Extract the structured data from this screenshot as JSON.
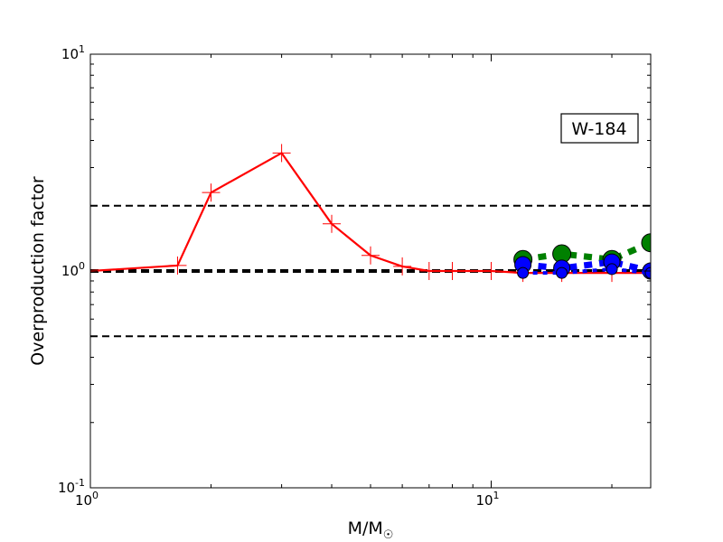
{
  "chart_data": {
    "type": "line",
    "xscale": "log",
    "yscale": "log",
    "xlim": [
      1,
      25
    ],
    "ylim": [
      0.1,
      10
    ],
    "xlabel_base": "M/M",
    "xlabel_sub": "☉",
    "ylabel": "Overproduction factor",
    "annotation": "W-184",
    "x_ticks": [
      {
        "value": 1,
        "base": "10",
        "exp": "0"
      },
      {
        "value": 10,
        "base": "10",
        "exp": "1"
      }
    ],
    "y_ticks": [
      {
        "value": 0.1,
        "base": "10",
        "exp": "-1"
      },
      {
        "value": 1,
        "base": "10",
        "exp": "0"
      },
      {
        "value": 10,
        "base": "10",
        "exp": "1"
      }
    ],
    "reference_lines": [
      {
        "y": 2,
        "color": "#000000",
        "style": "dashed"
      },
      {
        "y": 1,
        "color": "#000000",
        "style": "dashed-thick"
      },
      {
        "y": 0.5,
        "color": "#000000",
        "style": "dashed"
      }
    ],
    "series": [
      {
        "color": "#ff0000",
        "line": "solid",
        "marker": "plus",
        "x": [
          1,
          1.65,
          2,
          3,
          4,
          5,
          6,
          7,
          8,
          10,
          12,
          15,
          20,
          25
        ],
        "y": [
          1.0,
          1.06,
          2.3,
          3.5,
          1.65,
          1.18,
          1.05,
          1.0,
          1.0,
          1.0,
          0.98,
          0.98,
          0.98,
          0.98
        ]
      },
      {
        "color": "#008000",
        "line": "dotted-thick",
        "marker": "circle-large",
        "x": [
          12,
          15,
          20,
          25
        ],
        "y": [
          1.13,
          1.2,
          1.13,
          1.35
        ]
      },
      {
        "color": "#0000ff",
        "line": "dotted-thick",
        "marker": "circle-medium",
        "x": [
          12,
          15,
          20,
          25
        ],
        "y": [
          1.07,
          1.03,
          1.1,
          1.0
        ]
      },
      {
        "color": "#0000ff",
        "line": "dotted",
        "marker": "circle-small",
        "x": [
          12,
          15,
          20,
          25
        ],
        "y": [
          0.98,
          0.98,
          1.02,
          0.98
        ]
      }
    ]
  }
}
